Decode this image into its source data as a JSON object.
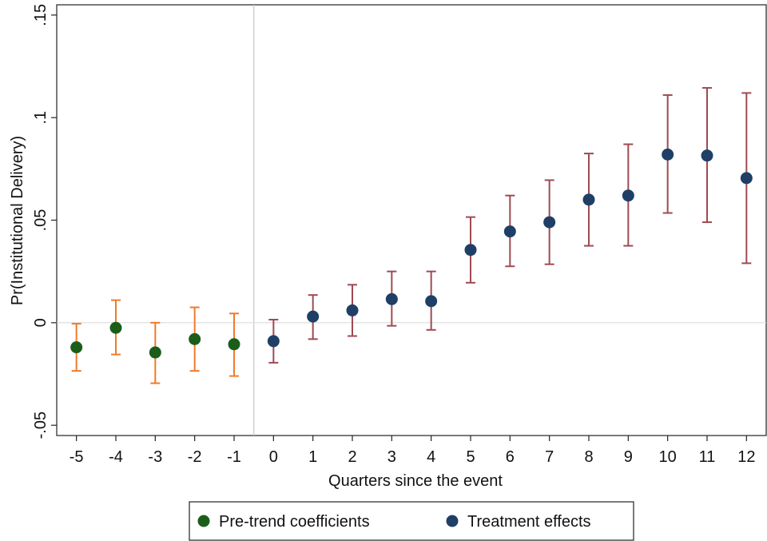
{
  "chart_data": {
    "type": "scatter",
    "xlabel": "Quarters since the event",
    "ylabel": "Pr(Institutional Delivery)",
    "xlim": [
      -5.5,
      12.5
    ],
    "ylim": [
      -0.055,
      0.155
    ],
    "x_ticks": [
      -5,
      -4,
      -3,
      -2,
      -1,
      0,
      1,
      2,
      3,
      4,
      5,
      6,
      7,
      8,
      9,
      10,
      11,
      12
    ],
    "y_ticks": [
      {
        "value": -0.05,
        "label": "-.05"
      },
      {
        "value": 0,
        "label": "0"
      },
      {
        "value": 0.05,
        "label": ".05"
      },
      {
        "value": 0.1,
        "label": ".1"
      },
      {
        "value": 0.15,
        "label": ".15"
      }
    ],
    "reference_lines": {
      "vertical_x": -0.5,
      "horizontal_y": 0
    },
    "grid": false,
    "legend_position": "bottom",
    "series": [
      {
        "name": "Pre-trend coefficients",
        "marker_color": "#1a5e1a",
        "errorbar_color": "#f07a2a",
        "points": [
          {
            "x": -5,
            "y": -0.012,
            "lo": -0.0235,
            "hi": -0.0005
          },
          {
            "x": -4,
            "y": -0.0025,
            "lo": -0.0155,
            "hi": 0.011
          },
          {
            "x": -3,
            "y": -0.0145,
            "lo": -0.0295,
            "hi": 0.0
          },
          {
            "x": -2,
            "y": -0.008,
            "lo": -0.0235,
            "hi": 0.0075
          },
          {
            "x": -1,
            "y": -0.0105,
            "lo": -0.026,
            "hi": 0.0045
          }
        ]
      },
      {
        "name": "Treatment effects",
        "marker_color": "#1f3f66",
        "errorbar_color": "#9e4a52",
        "points": [
          {
            "x": 0,
            "y": -0.009,
            "lo": -0.0195,
            "hi": 0.0015
          },
          {
            "x": 1,
            "y": 0.003,
            "lo": -0.008,
            "hi": 0.0135
          },
          {
            "x": 2,
            "y": 0.006,
            "lo": -0.0065,
            "hi": 0.0185
          },
          {
            "x": 3,
            "y": 0.0115,
            "lo": -0.0015,
            "hi": 0.025
          },
          {
            "x": 4,
            "y": 0.0105,
            "lo": -0.0035,
            "hi": 0.025
          },
          {
            "x": 5,
            "y": 0.0355,
            "lo": 0.0195,
            "hi": 0.0515
          },
          {
            "x": 6,
            "y": 0.0445,
            "lo": 0.0275,
            "hi": 0.062
          },
          {
            "x": 7,
            "y": 0.049,
            "lo": 0.0285,
            "hi": 0.0695
          },
          {
            "x": 8,
            "y": 0.06,
            "lo": 0.0375,
            "hi": 0.0825
          },
          {
            "x": 9,
            "y": 0.062,
            "lo": 0.0375,
            "hi": 0.087
          },
          {
            "x": 10,
            "y": 0.082,
            "lo": 0.0535,
            "hi": 0.111
          },
          {
            "x": 11,
            "y": 0.0815,
            "lo": 0.049,
            "hi": 0.1145
          },
          {
            "x": 12,
            "y": 0.0705,
            "lo": 0.029,
            "hi": 0.112
          }
        ]
      }
    ]
  }
}
